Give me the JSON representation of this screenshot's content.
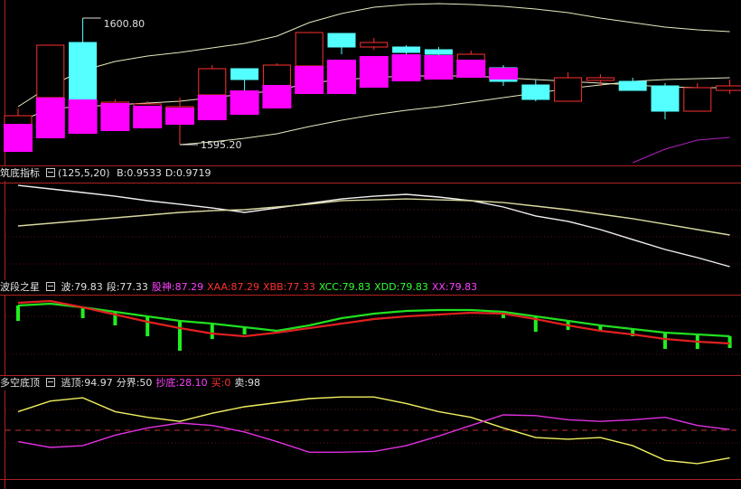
{
  "chart_data": [
    {
      "type": "candlestick",
      "categories": [
        null,
        null,
        null,
        null,
        null,
        null,
        null,
        null,
        null,
        null,
        null,
        null,
        null,
        null,
        null,
        null,
        null,
        null,
        null,
        null,
        null,
        null,
        null
      ],
      "ylim": [
        1594.28,
        1601.6
      ],
      "up_color": "#ff3030",
      "down_color": "#54ffff",
      "open": [
        1596.0,
        1597.28,
        1599.72,
        1596.88,
        1596.8,
        1596.6,
        1597.4,
        1598.56,
        1597.8,
        1598.68,
        1600.12,
        1599.52,
        1599.52,
        1599.4,
        1598.88,
        1598.6,
        1597.84,
        1597.12,
        1598.04,
        1598.0,
        1597.8,
        1596.68,
        1597.6
      ],
      "high": [
        1596.8,
        1599.6,
        1600.8,
        1597.2,
        1597.12,
        1597.28,
        1598.72,
        1598.56,
        1598.8,
        1600.16,
        1600.12,
        1599.92,
        1599.6,
        1599.52,
        1599.36,
        1598.72,
        1598.08,
        1598.4,
        1598.32,
        1598.16,
        1597.92,
        1597.92,
        1598.08
      ],
      "low": [
        1594.88,
        1596.8,
        1597.2,
        1596.8,
        1596.72,
        1595.2,
        1597.28,
        1597.6,
        1597.6,
        1598.4,
        1599.2,
        1599.4,
        1599.12,
        1599.04,
        1598.16,
        1597.8,
        1597.12,
        1597.12,
        1597.8,
        1597.6,
        1596.32,
        1596.68,
        1597.44
      ],
      "close": [
        1596.48,
        1599.6,
        1597.2,
        1597.08,
        1597.0,
        1596.88,
        1598.56,
        1598.08,
        1598.72,
        1600.16,
        1599.52,
        1599.72,
        1599.28,
        1599.2,
        1599.2,
        1598.0,
        1597.2,
        1598.16,
        1598.16,
        1597.6,
        1596.68,
        1597.72,
        1597.8
      ],
      "overlays": [
        {
          "type": "line",
          "color": "#e8e8c0",
          "values": [
            1596.88,
            1597.8,
            1598.48,
            1598.88,
            1599.12,
            1599.28,
            1599.48,
            1599.68,
            1600.0,
            1600.6,
            1601.0,
            1601.28,
            1601.4,
            1601.44,
            1601.4,
            1601.32,
            1601.2,
            1601.04,
            1600.8,
            1600.6,
            1600.4,
            1600.28,
            1600.2
          ]
        },
        {
          "type": "line",
          "color": "#e8e8c0",
          "values": [
            1596.2,
            1596.8,
            1596.88,
            1596.96,
            1597.04,
            1597.12,
            1597.28,
            1597.44,
            1597.6,
            1597.92,
            1598.08,
            1598.16,
            1598.24,
            1598.24,
            1598.24,
            1598.16,
            1598.08,
            1598.0,
            1597.92,
            1597.84,
            1597.76,
            1597.72,
            1597.72
          ]
        },
        {
          "type": "line",
          "color": "#e8e8c0",
          "values": [
            null,
            null,
            null,
            null,
            null,
            1595.2,
            1595.32,
            1595.48,
            1595.68,
            1596.0,
            1596.28,
            1596.52,
            1596.72,
            1596.88,
            1597.08,
            1597.28,
            1597.48,
            1597.68,
            1597.84,
            1598.0,
            1598.08,
            1598.12,
            1598.16
          ]
        },
        {
          "type": "line",
          "color": "#b020c0",
          "values": [
            null,
            null,
            null,
            null,
            null,
            null,
            null,
            null,
            null,
            null,
            null,
            null,
            null,
            null,
            null,
            null,
            null,
            null,
            null,
            1594.4,
            1595.0,
            1595.4,
            1595.52
          ]
        },
        {
          "type": "box",
          "color": "#ff00ff",
          "top": [
            1596.12,
            1597.28,
            1597.2,
            1597.04,
            1596.92,
            1596.84,
            1597.4,
            1597.6,
            1597.84,
            1598.68,
            1598.96,
            1599.12,
            1599.2,
            1599.16,
            1598.96,
            1598.6,
            null,
            null,
            null,
            null,
            null,
            null,
            null
          ],
          "bottom": [
            1594.88,
            1595.48,
            1595.68,
            1595.8,
            1595.92,
            1596.08,
            1596.28,
            1596.52,
            1596.8,
            1597.44,
            1597.44,
            1597.72,
            1598.0,
            1598.08,
            1598.16,
            1598.08,
            null,
            null,
            null,
            null,
            null,
            null,
            null
          ]
        }
      ],
      "annotations": [
        {
          "value": 1600.8,
          "label": "1600.80"
        },
        {
          "value": 1595.2,
          "label": "1595.20"
        }
      ]
    },
    {
      "type": "line",
      "title": "筑底指标",
      "params": "(125,5,20)",
      "readouts": [
        {
          "text": "B:0.9533",
          "color": "#e0e0e0"
        },
        {
          "text": "D:0.9719",
          "color": "#e0e0e0"
        }
      ],
      "categories": [
        null,
        null,
        null,
        null,
        null,
        null,
        null,
        null,
        null,
        null,
        null,
        null,
        null,
        null,
        null,
        null,
        null,
        null,
        null,
        null,
        null,
        null,
        null
      ],
      "ylim": [
        0.9453,
        1.0022
      ],
      "series": [
        {
          "color": "#f0f0f0",
          "values": [
            1.0011,
            0.999,
            0.9969,
            0.9947,
            0.9921,
            0.99,
            0.9878,
            0.9852,
            0.9878,
            0.9905,
            0.9931,
            0.9947,
            0.9958,
            0.9942,
            0.9921,
            0.9884,
            0.9831,
            0.9799,
            0.9751,
            0.9692,
            0.9634,
            0.9586,
            0.9533
          ]
        },
        {
          "color": "#d8d8a0",
          "values": [
            0.9772,
            0.9788,
            0.9804,
            0.982,
            0.9836,
            0.9852,
            0.9862,
            0.9868,
            0.9884,
            0.99,
            0.9921,
            0.9926,
            0.9931,
            0.9926,
            0.9921,
            0.991,
            0.9889,
            0.9868,
            0.9841,
            0.9815,
            0.9783,
            0.9751,
            0.9719
          ]
        }
      ]
    },
    {
      "type": "line",
      "title": "波段之星",
      "readouts": [
        {
          "text": "波:79.83",
          "color": "#e0e0e0"
        },
        {
          "text": "段:77.33",
          "color": "#e0e0e0"
        },
        {
          "text": "股神:87.29",
          "color": "#ff40ff"
        },
        {
          "text": "XAA:87.29",
          "color": "#ff3030"
        },
        {
          "text": "XBB:77.33",
          "color": "#ff3030"
        },
        {
          "text": "XCC:79.83",
          "color": "#30ff30"
        },
        {
          "text": "XDD:79.83",
          "color": "#30ff30"
        },
        {
          "text": "XX:79.83",
          "color": "#ff40ff"
        }
      ],
      "categories": [
        null,
        null,
        null,
        null,
        null,
        null,
        null,
        null,
        null,
        null,
        null,
        null,
        null,
        null,
        null,
        null,
        null,
        null,
        null,
        null,
        null,
        null,
        null
      ],
      "ylim": [
        66.4,
        93.9
      ],
      "series": [
        {
          "color": "#20e020",
          "values": [
            90.46,
            91.08,
            89.83,
            88.27,
            86.71,
            85.14,
            84.21,
            82.96,
            81.71,
            83.58,
            86.08,
            87.64,
            88.58,
            88.89,
            88.89,
            88.27,
            86.71,
            85.14,
            83.58,
            82.33,
            81.08,
            80.46,
            79.83
          ]
        },
        {
          "color": "#e02020",
          "values": [
            91.39,
            92.02,
            89.83,
            87.33,
            84.83,
            82.64,
            80.77,
            79.83,
            81.08,
            82.64,
            84.21,
            85.77,
            86.71,
            87.33,
            87.96,
            87.64,
            85.77,
            83.58,
            81.71,
            80.46,
            78.89,
            77.96,
            77.33
          ]
        }
      ],
      "sticks": {
        "color": "#20f020",
        "values": [
          85.14,
          null,
          86.08,
          83.58,
          79.83,
          74.83,
          78.89,
          80.46,
          null,
          null,
          null,
          null,
          null,
          null,
          null,
          86.08,
          81.39,
          82.02,
          82.02,
          79.83,
          75.46,
          75.46,
          75.77
        ]
      }
    },
    {
      "type": "line",
      "title": "多空底顶",
      "readouts": [
        {
          "text": "逃顶:94.97",
          "color": "#e0e0e0"
        },
        {
          "text": "分界:50",
          "color": "#e0e0e0"
        },
        {
          "text": "抄底:28.10",
          "color": "#ff40ff"
        },
        {
          "text": "买:0",
          "color": "#ff3030"
        },
        {
          "text": "卖:98",
          "color": "#e0e0e0"
        }
      ],
      "categories": [
        null,
        null,
        null,
        null,
        null,
        null,
        null,
        null,
        null,
        null,
        null,
        null,
        null,
        null,
        null,
        null,
        null,
        null,
        null,
        null,
        null,
        null,
        null
      ],
      "ylim": [
        -18.2,
        105.7
      ],
      "ref_line": {
        "value": 50,
        "color": "#c03030"
      },
      "series": [
        {
          "color": "#f0f060",
          "values": [
            76.1,
            90.9,
            95.5,
            76.1,
            68.2,
            62.5,
            73.9,
            83.0,
            88.6,
            94.3,
            96.6,
            96.6,
            87.5,
            76.1,
            68.2,
            53.4,
            39.8,
            37.5,
            39.8,
            28.4,
            8.0,
            3.4,
            11.4
          ]
        },
        {
          "color": "#e030e0",
          "values": [
            34.1,
            26.1,
            28.4,
            43.2,
            53.4,
            60.2,
            56.8,
            47.7,
            34.1,
            19.3,
            19.3,
            20.5,
            28.4,
            42.0,
            56.8,
            71.6,
            70.5,
            64.8,
            62.5,
            64.8,
            68.2,
            56.8,
            51.1
          ]
        }
      ]
    }
  ]
}
